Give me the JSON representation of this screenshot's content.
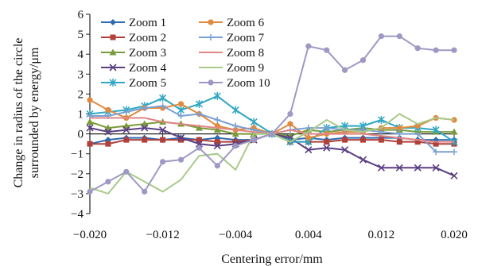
{
  "chart_data": {
    "type": "line",
    "title": "",
    "xlabel": "Centering error/mm",
    "ylabel_lines": [
      "Change in radius of the circle",
      "surrounded by energy/μm"
    ],
    "xlim": [
      -0.02,
      0.02
    ],
    "ylim": [
      -4,
      6
    ],
    "x_ticks": [
      -0.02,
      -0.012,
      -0.004,
      0.004,
      0.012,
      0.02
    ],
    "x_tick_labels": [
      "−0.020",
      "−0.012",
      "−0.004",
      "0.004",
      "0.012",
      "0.020"
    ],
    "y_ticks": [
      -4,
      -3,
      -2,
      -1,
      0,
      1,
      2,
      3,
      4,
      5,
      6
    ],
    "y_tick_labels": [
      "−4",
      "−3",
      "−2",
      "−1",
      "0",
      "1",
      "2",
      "3",
      "4",
      "5",
      "6"
    ],
    "grid": "none",
    "legend_position": "top-left",
    "x": [
      -0.02,
      -0.018,
      -0.016,
      -0.014,
      -0.012,
      -0.01,
      -0.008,
      -0.006,
      -0.004,
      -0.002,
      0.0,
      0.002,
      0.004,
      0.006,
      0.008,
      0.01,
      0.012,
      0.014,
      0.016,
      0.018,
      0.02
    ],
    "series": [
      {
        "name": "Zoom 1",
        "color": "#2e6bb0",
        "marker": "diamond",
        "values": [
          -0.5,
          -0.3,
          -0.2,
          -0.2,
          -0.3,
          -0.2,
          -0.3,
          -0.2,
          -0.3,
          -0.3,
          0.0,
          -0.3,
          -0.2,
          -0.3,
          -0.2,
          -0.2,
          -0.2,
          -0.2,
          -0.3,
          -0.3,
          -0.3
        ]
      },
      {
        "name": "Zoom 2",
        "color": "#b0403a",
        "marker": "square",
        "values": [
          -0.5,
          -0.5,
          -0.3,
          -0.3,
          -0.3,
          -0.3,
          -0.3,
          -0.4,
          -0.4,
          -0.3,
          0.0,
          -0.4,
          -0.4,
          -0.4,
          -0.3,
          -0.3,
          -0.3,
          -0.4,
          -0.4,
          -0.5,
          -0.5
        ]
      },
      {
        "name": "Zoom 3",
        "color": "#7a9b3a",
        "marker": "triangle",
        "values": [
          0.6,
          0.3,
          0.4,
          0.5,
          0.6,
          0.5,
          0.3,
          0.2,
          0.0,
          0.0,
          0.0,
          -0.1,
          0.2,
          0.1,
          0.2,
          0.3,
          0.2,
          0.2,
          0.1,
          0.1,
          0.1
        ]
      },
      {
        "name": "Zoom 4",
        "color": "#5a3f82",
        "marker": "x",
        "values": [
          0.3,
          0.1,
          0.2,
          0.3,
          0.2,
          -0.2,
          -0.5,
          -0.6,
          -0.5,
          -0.3,
          0.0,
          -0.2,
          -0.8,
          -0.7,
          -0.8,
          -1.3,
          -1.7,
          -1.7,
          -1.7,
          -1.7,
          -2.1
        ]
      },
      {
        "name": "Zoom 5",
        "color": "#2fa7c3",
        "marker": "star",
        "values": [
          1.0,
          1.1,
          1.2,
          1.4,
          1.8,
          1.2,
          1.5,
          1.9,
          1.2,
          0.6,
          0.0,
          -0.4,
          -0.4,
          0.3,
          0.4,
          0.4,
          0.7,
          0.3,
          0.3,
          0.2,
          -0.4
        ]
      },
      {
        "name": "Zoom 6",
        "color": "#e08a3e",
        "marker": "circle",
        "values": [
          1.7,
          1.2,
          0.8,
          1.3,
          1.3,
          1.5,
          1.0,
          0.4,
          0.2,
          0.3,
          0.0,
          0.5,
          -0.2,
          0.0,
          0.1,
          0.1,
          0.3,
          0.3,
          0.4,
          0.8,
          0.7
        ]
      },
      {
        "name": "Zoom 7",
        "color": "#7aa0d2",
        "marker": "plus",
        "values": [
          0.9,
          0.9,
          1.1,
          1.3,
          1.4,
          0.9,
          1.0,
          0.7,
          0.4,
          0.2,
          0.0,
          0.2,
          0.3,
          0.3,
          0.2,
          0.2,
          0.1,
          0.0,
          0.0,
          -0.9,
          -0.9
        ]
      },
      {
        "name": "Zoom 8",
        "color": "#e28585",
        "marker": "none",
        "values": [
          0.8,
          0.8,
          0.8,
          0.8,
          0.6,
          0.5,
          0.4,
          0.3,
          0.2,
          0.1,
          0.0,
          0.2,
          0.0,
          0.0,
          0.0,
          0.0,
          -0.1,
          -0.2,
          -0.3,
          -0.4,
          -0.4
        ]
      },
      {
        "name": "Zoom 9",
        "color": "#a9c98a",
        "marker": "none",
        "values": [
          -2.7,
          -3.0,
          -1.9,
          -2.4,
          -2.9,
          -2.3,
          -1.1,
          -1.0,
          -1.8,
          0.0,
          0.0,
          -0.4,
          0.1,
          0.7,
          0.2,
          0.1,
          0.3,
          1.0,
          0.5,
          0.8,
          0.7
        ]
      },
      {
        "name": "Zoom 10",
        "color": "#9d99c4",
        "marker": "circle",
        "values": [
          -2.9,
          -2.4,
          -1.9,
          -2.9,
          -1.4,
          -1.3,
          -0.7,
          -1.6,
          -0.6,
          -0.3,
          0.0,
          1.0,
          4.4,
          4.2,
          3.2,
          3.7,
          4.9,
          4.9,
          4.3,
          4.2,
          4.2
        ]
      }
    ]
  }
}
